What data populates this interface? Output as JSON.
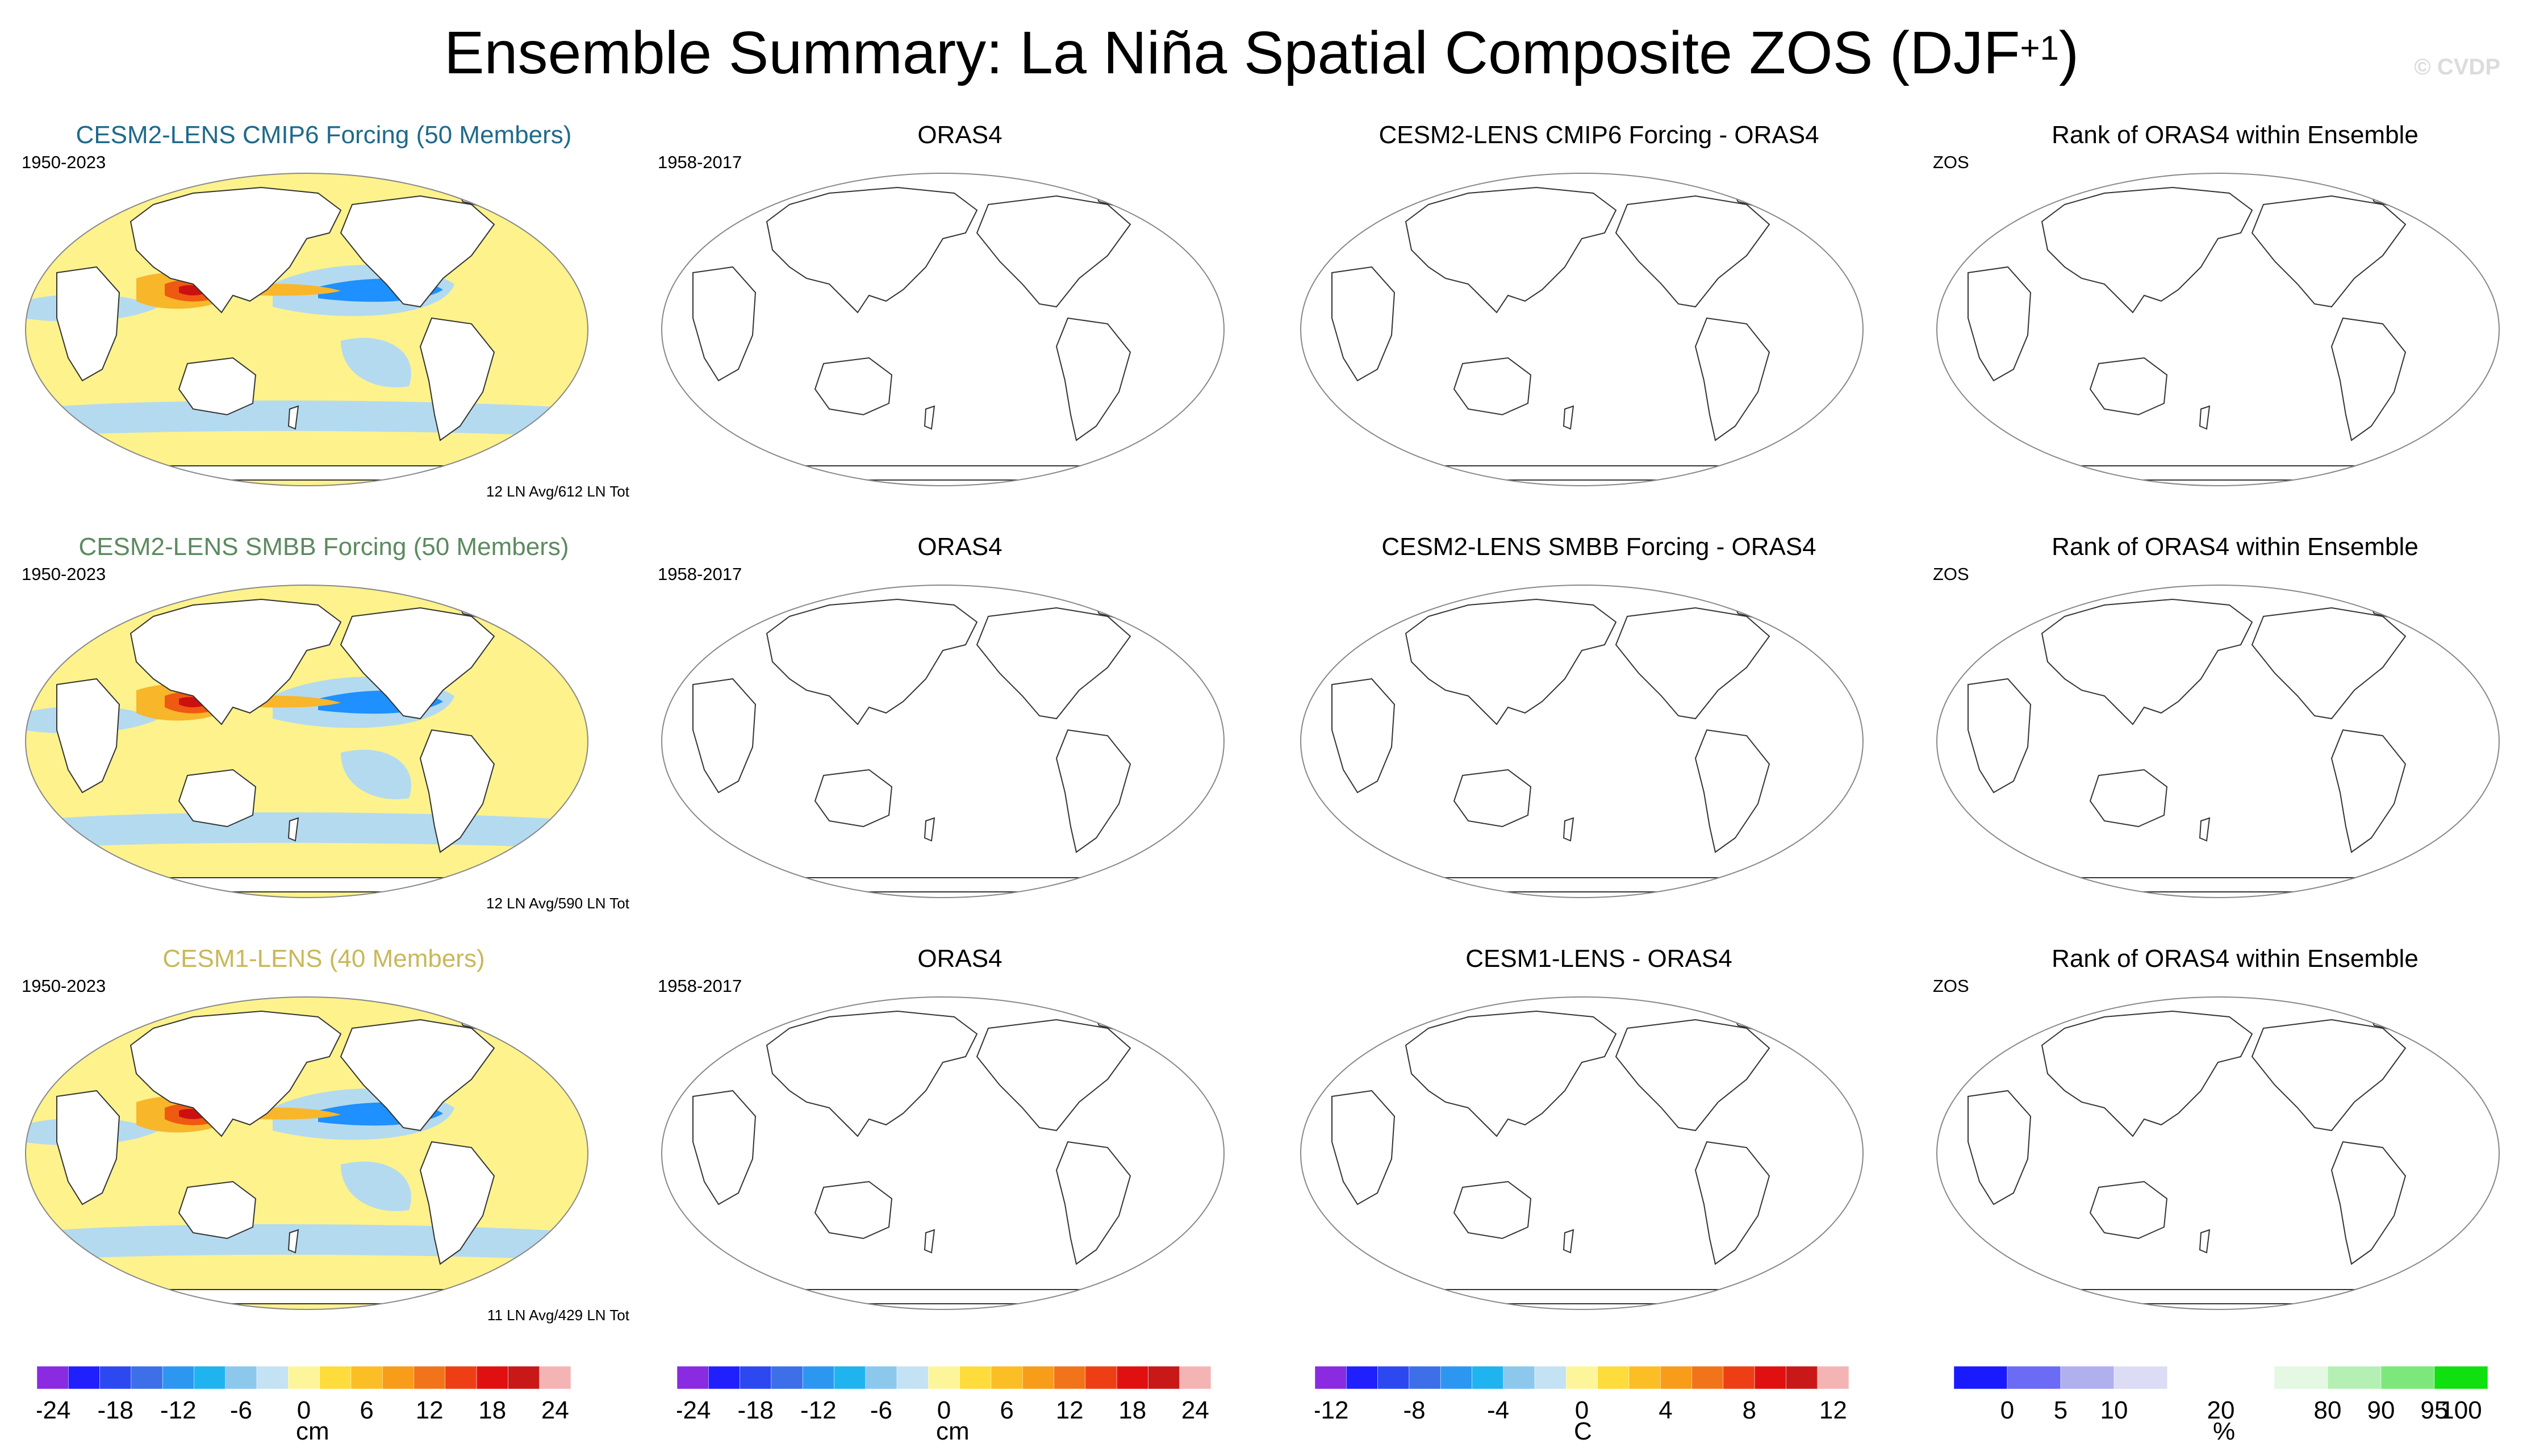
{
  "title": {
    "text": "Ensemble Summary: La Niña Spatial Composite ZOS (DJF",
    "superscript": "+1",
    "close": ")"
  },
  "watermark": "© CVDP",
  "colors": {
    "land": "#ffffff",
    "coast": "#333333",
    "fill_neg_strong": "#1e90ff",
    "fill_neg_weak": "#b4daf0",
    "fill_pos_weak": "#fdf28c",
    "fill_pos_mid": "#f8b62a",
    "fill_pos_strong": "#ee5a12",
    "fill_pos_max": "#cc1010",
    "title_row1": "#1f6a8c",
    "title_row2": "#5c8a60",
    "title_row3": "#c9b85a"
  },
  "rows": [
    {
      "model": {
        "title": "CESM2-LENS CMIP6 Forcing (50 Members)",
        "period": "1950-2023",
        "counts": "12 LN Avg/612 LN Tot"
      },
      "obs": {
        "title": "ORAS4",
        "period": "1958-2017"
      },
      "diff": {
        "title": "CESM2-LENS CMIP6 Forcing - ORAS4"
      },
      "rank": {
        "title": "Rank of ORAS4 within Ensemble",
        "period": "ZOS"
      }
    },
    {
      "model": {
        "title": "CESM2-LENS SMBB Forcing (50 Members)",
        "period": "1950-2023",
        "counts": "12 LN Avg/590 LN Tot"
      },
      "obs": {
        "title": "ORAS4",
        "period": "1958-2017"
      },
      "diff": {
        "title": "CESM2-LENS SMBB Forcing - ORAS4"
      },
      "rank": {
        "title": "Rank of ORAS4 within Ensemble",
        "period": "ZOS"
      }
    },
    {
      "model": {
        "title": "CESM1-LENS (40 Members)",
        "period": "1950-2023",
        "counts": "11 LN Avg/429 LN Tot"
      },
      "obs": {
        "title": "ORAS4",
        "period": "1958-2017"
      },
      "diff": {
        "title": "CESM1-LENS - ORAS4"
      },
      "rank": {
        "title": "Rank of ORAS4 within Ensemble",
        "period": "ZOS"
      }
    }
  ],
  "colorbars": [
    {
      "unit": "cm",
      "colors": [
        "#8a2be2",
        "#2020ff",
        "#2c48f0",
        "#3c6fe8",
        "#2d96f0",
        "#1fb3f0",
        "#8cc8ec",
        "#c3e2f4",
        "#fdf59a",
        "#fddc3c",
        "#fbbf25",
        "#f79d1a",
        "#f2741a",
        "#ee3f14",
        "#e01010",
        "#c81818",
        "#f4b4b4"
      ],
      "ticks": [
        "-24",
        "-18",
        "-12",
        "-6",
        "0",
        "6",
        "12",
        "18",
        "24"
      ]
    },
    {
      "unit": "cm",
      "colors": [
        "#8a2be2",
        "#2020ff",
        "#2c48f0",
        "#3c6fe8",
        "#2d96f0",
        "#1fb3f0",
        "#8cc8ec",
        "#c3e2f4",
        "#fdf59a",
        "#fddc3c",
        "#fbbf25",
        "#f79d1a",
        "#f2741a",
        "#ee3f14",
        "#e01010",
        "#c81818",
        "#f4b4b4"
      ],
      "ticks": [
        "-24",
        "-18",
        "-12",
        "-6",
        "0",
        "6",
        "12",
        "18",
        "24"
      ]
    },
    {
      "unit": "C",
      "colors": [
        "#8a2be2",
        "#2020ff",
        "#2c48f0",
        "#3c6fe8",
        "#2d96f0",
        "#1fb3f0",
        "#8cc8ec",
        "#c3e2f4",
        "#fdf59a",
        "#fddc3c",
        "#fbbf25",
        "#f79d1a",
        "#f2741a",
        "#ee3f14",
        "#e01010",
        "#c81818",
        "#f4b4b4"
      ],
      "ticks": [
        "-12",
        "-8",
        "-4",
        "0",
        "4",
        "8",
        "12"
      ]
    },
    {
      "unit": "%",
      "colors": [
        "#1a1aff",
        "#6b6bf5",
        "#b0b0ee",
        "#dcdcf4",
        "#ffffff",
        "#ffffff",
        "#e4f8e4",
        "#b4f0b4",
        "#7ce87c",
        "#10e010"
      ],
      "ticks": [
        "0",
        "5",
        "10",
        "20",
        "80",
        "90",
        "95",
        "100"
      ]
    }
  ]
}
